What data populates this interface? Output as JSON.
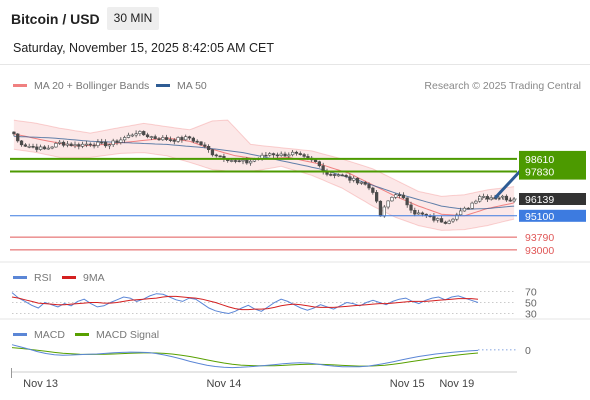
{
  "header": {
    "title": "Bitcoin / USD",
    "interval": "30 MIN",
    "datetime": "Saturday, November 15, 2025 8:42:05 AM CET",
    "credit": "Research © 2025 Trading Central"
  },
  "colors": {
    "bollinger": "#f08080",
    "ma20": "#f08080",
    "ma50": "#2e5c94",
    "resistance": "#4c9a00",
    "pivot": "#3d7be0",
    "support": "#e05858",
    "candle": "#4a4a4a",
    "rsi": "#5b86d6",
    "rsi_ma": "#d42020",
    "macd": "#5b86d6",
    "macd_signal": "#58a000",
    "current": "#333333",
    "arrow": "#2e5c94"
  },
  "chart_data": [
    {
      "type": "candlestick",
      "legend": [
        {
          "name": "MA 20 + Bollinger Bands",
          "color_key": "ma20"
        },
        {
          "name": "MA 50",
          "color_key": "ma50"
        }
      ],
      "x_ticks": [
        "Nov 13",
        "Nov 14",
        "Nov 15",
        "Nov 19"
      ],
      "x_tick_positions": [
        7,
        55,
        103,
        116
      ],
      "n_bars": 132,
      "ylim": [
        92500,
        101500
      ],
      "anchors": [
        [
          0,
          100150
        ],
        [
          1,
          99700
        ],
        [
          3,
          99450
        ],
        [
          8,
          99200
        ],
        [
          12,
          99600
        ],
        [
          16,
          99450
        ],
        [
          20,
          99550
        ],
        [
          25,
          99500
        ],
        [
          28,
          99800
        ],
        [
          32,
          100250
        ],
        [
          37,
          99900
        ],
        [
          42,
          99800
        ],
        [
          46,
          99900
        ],
        [
          49,
          99500
        ],
        [
          52,
          98950
        ],
        [
          55,
          98700
        ],
        [
          58,
          98450
        ],
        [
          61,
          98400
        ],
        [
          64,
          98650
        ],
        [
          67,
          98950
        ],
        [
          70,
          98850
        ],
        [
          73,
          98950
        ],
        [
          76,
          98650
        ],
        [
          79,
          98400
        ],
        [
          82,
          97700
        ],
        [
          85,
          97650
        ],
        [
          88,
          97350
        ],
        [
          91,
          97200
        ],
        [
          94,
          96650
        ],
        [
          96,
          95100
        ],
        [
          98,
          96000
        ],
        [
          100,
          96500
        ],
        [
          102,
          96100
        ],
        [
          105,
          95300
        ],
        [
          107,
          95150
        ],
        [
          110,
          94900
        ],
        [
          113,
          94750
        ],
        [
          116,
          95150
        ],
        [
          119,
          95650
        ],
        [
          122,
          96350
        ],
        [
          124,
          96250
        ],
        [
          127,
          96300
        ],
        [
          130,
          96100
        ],
        [
          131,
          96139
        ]
      ],
      "ma20": [
        [
          0,
          100150
        ],
        [
          8,
          99750
        ],
        [
          16,
          99400
        ],
        [
          24,
          99500
        ],
        [
          32,
          99700
        ],
        [
          40,
          99900
        ],
        [
          46,
          99700
        ],
        [
          52,
          99200
        ],
        [
          58,
          98800
        ],
        [
          64,
          98600
        ],
        [
          72,
          98700
        ],
        [
          80,
          98300
        ],
        [
          88,
          97700
        ],
        [
          94,
          97000
        ],
        [
          100,
          96300
        ],
        [
          106,
          95700
        ],
        [
          112,
          95200
        ],
        [
          118,
          95100
        ],
        [
          124,
          95550
        ],
        [
          131,
          95900
        ]
      ],
      "bollinger_upper": [
        [
          0,
          101000
        ],
        [
          6,
          100800
        ],
        [
          12,
          100500
        ],
        [
          20,
          100200
        ],
        [
          28,
          100550
        ],
        [
          34,
          100800
        ],
        [
          40,
          100600
        ],
        [
          46,
          100400
        ],
        [
          52,
          100950
        ],
        [
          56,
          101000
        ],
        [
          62,
          99500
        ],
        [
          70,
          99300
        ],
        [
          78,
          99100
        ],
        [
          86,
          98600
        ],
        [
          94,
          98000
        ],
        [
          100,
          97300
        ],
        [
          106,
          96600
        ],
        [
          112,
          96300
        ],
        [
          118,
          96400
        ],
        [
          124,
          96700
        ],
        [
          131,
          96900
        ]
      ],
      "bollinger_lower": [
        [
          0,
          99200
        ],
        [
          6,
          99000
        ],
        [
          12,
          98700
        ],
        [
          20,
          98700
        ],
        [
          28,
          98950
        ],
        [
          34,
          99000
        ],
        [
          40,
          98800
        ],
        [
          46,
          98400
        ],
        [
          52,
          97950
        ],
        [
          58,
          97800
        ],
        [
          64,
          97900
        ],
        [
          70,
          98150
        ],
        [
          78,
          97600
        ],
        [
          86,
          96800
        ],
        [
          94,
          95700
        ],
        [
          100,
          95000
        ],
        [
          106,
          94500
        ],
        [
          112,
          94200
        ],
        [
          118,
          94250
        ],
        [
          124,
          94500
        ],
        [
          131,
          94900
        ]
      ],
      "ma50": [
        [
          0,
          100000
        ],
        [
          10,
          99900
        ],
        [
          20,
          99700
        ],
        [
          30,
          99600
        ],
        [
          40,
          99500
        ],
        [
          50,
          99300
        ],
        [
          60,
          99000
        ],
        [
          70,
          98500
        ],
        [
          80,
          98000
        ],
        [
          90,
          97300
        ],
        [
          100,
          96500
        ],
        [
          106,
          96100
        ],
        [
          112,
          95700
        ],
        [
          118,
          95500
        ],
        [
          124,
          95550
        ],
        [
          131,
          95700
        ]
      ],
      "levels": [
        {
          "value": 98610,
          "label": "98610",
          "color_key": "resistance",
          "width": 2
        },
        {
          "value": 97830,
          "label": "97830",
          "color_key": "resistance",
          "width": 2
        },
        {
          "value": 95100,
          "label": "95100",
          "color_key": "pivot",
          "width": 1
        },
        {
          "value": 93790,
          "label": "93790",
          "color_key": "support",
          "width": 1
        },
        {
          "value": 93000,
          "label": "93000",
          "color_key": "support",
          "width": 1
        }
      ],
      "current_price": {
        "value": 96139,
        "label": "96139"
      },
      "arrow": {
        "from": [
          126,
          96200
        ],
        "to": [
          136,
          98450
        ]
      }
    },
    {
      "type": "line",
      "legend": [
        {
          "name": "RSI",
          "color_key": "rsi"
        },
        {
          "name": "9MA",
          "color_key": "rsi_ma"
        }
      ],
      "ylim": [
        20,
        80
      ],
      "ref_lines": [
        {
          "value": 70,
          "label": "70"
        },
        {
          "value": 50,
          "label": "50"
        },
        {
          "value": 30,
          "label": "30"
        }
      ],
      "series": [
        {
          "name": "RSI",
          "color_key": "rsi",
          "values": [
            68,
            58,
            52,
            45,
            40,
            50,
            46,
            42,
            48,
            44,
            52,
            56,
            48,
            42,
            44,
            50,
            55,
            60,
            58,
            52,
            56,
            62,
            66,
            65,
            60,
            55,
            52,
            58,
            56,
            48,
            40,
            35,
            32,
            30,
            34,
            40,
            45,
            38,
            34,
            42,
            50,
            56,
            52,
            46,
            40,
            36,
            40,
            46,
            42,
            38,
            44,
            50,
            48,
            44,
            50,
            54,
            50,
            46,
            52,
            56,
            58,
            52,
            48,
            54,
            58,
            60,
            55,
            60,
            62,
            58,
            54,
            50
          ]
        },
        {
          "name": "9MA",
          "color_key": "rsi_ma",
          "values": [
            60,
            58,
            55,
            52,
            49,
            48,
            47,
            46,
            46,
            47,
            48,
            49,
            50,
            50,
            49,
            49,
            50,
            52,
            54,
            55,
            56,
            57,
            58,
            60,
            61,
            61,
            60,
            59,
            58,
            56,
            53,
            50,
            46,
            42,
            39,
            37,
            37,
            38,
            38,
            39,
            41,
            44,
            46,
            47,
            46,
            44,
            42,
            41,
            41,
            41,
            42,
            43,
            44,
            45,
            46,
            47,
            48,
            48,
            49,
            50,
            51,
            52,
            52,
            52,
            53,
            54,
            55,
            56,
            57,
            57,
            57,
            56
          ]
        }
      ]
    },
    {
      "type": "line",
      "legend": [
        {
          "name": "MACD",
          "color_key": "macd"
        },
        {
          "name": "MACD Signal",
          "color_key": "macd_signal"
        }
      ],
      "ylim": [
        -1500,
        600
      ],
      "ref_lines": [
        {
          "value": 0,
          "label": "0"
        }
      ],
      "series": [
        {
          "name": "MACD",
          "color_key": "macd",
          "values": [
            350,
            200,
            50,
            -120,
            -250,
            -330,
            -360,
            -350,
            -320,
            -300,
            -280,
            -240,
            -200,
            -170,
            -150,
            -160,
            -180,
            -250,
            -350,
            -480,
            -620,
            -780,
            -920,
            -1040,
            -1130,
            -1180,
            -1200,
            -1180,
            -1150,
            -1100,
            -1050,
            -1000,
            -940,
            -900,
            -880,
            -900,
            -960,
            -1040,
            -1100,
            -1140,
            -1150,
            -1140,
            -1100,
            -1020,
            -920,
            -800,
            -680,
            -560,
            -450,
            -360,
            -280,
            -220,
            -160,
            -110,
            -70,
            -40
          ]
        },
        {
          "name": "MACD Signal",
          "color_key": "macd_signal",
          "values": [
            150,
            100,
            40,
            -30,
            -100,
            -170,
            -230,
            -270,
            -300,
            -310,
            -310,
            -300,
            -280,
            -255,
            -230,
            -210,
            -200,
            -210,
            -240,
            -290,
            -360,
            -450,
            -560,
            -680,
            -790,
            -890,
            -970,
            -1030,
            -1060,
            -1080,
            -1080,
            -1070,
            -1050,
            -1020,
            -990,
            -970,
            -970,
            -990,
            -1020,
            -1050,
            -1080,
            -1100,
            -1100,
            -1080,
            -1040,
            -980,
            -900,
            -810,
            -720,
            -630,
            -540,
            -460,
            -390,
            -320,
            -260,
            -210
          ]
        }
      ]
    }
  ]
}
